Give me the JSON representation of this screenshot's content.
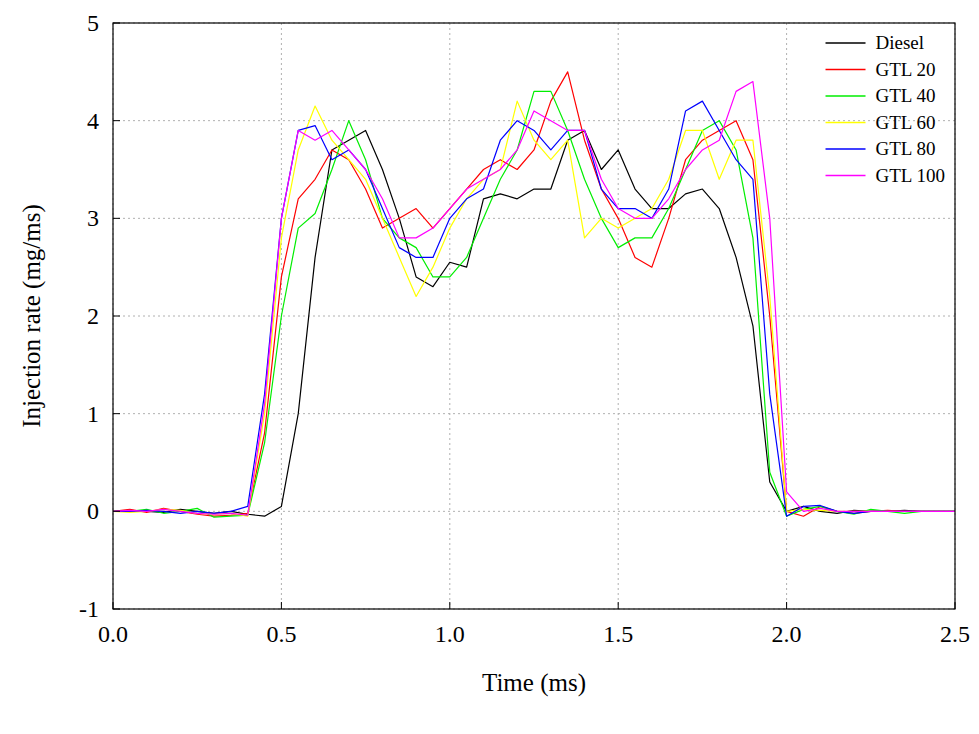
{
  "chart_data": {
    "type": "line",
    "x_label": "Time (ms)",
    "y_label": "Injection rate (mg/ms)",
    "xlim": [
      0,
      2.5
    ],
    "ylim": [
      -1,
      5
    ],
    "xticks": [
      {
        "value": 0,
        "label": "0.0"
      },
      0.5,
      {
        "value": 1,
        "label": "1.0"
      },
      1.5,
      {
        "value": 2,
        "label": "2.0"
      },
      2.5
    ],
    "yticks": [
      -1,
      0,
      1,
      2,
      3,
      4,
      5
    ],
    "grid": true,
    "legend": "upper right",
    "x": [
      0,
      0.05,
      0.1,
      0.15,
      0.2,
      0.25,
      0.3,
      0.35,
      0.4,
      0.45,
      0.5,
      0.55,
      0.6,
      0.65,
      0.7,
      0.75,
      0.8,
      0.85,
      0.9,
      0.95,
      1.0,
      1.05,
      1.1,
      1.15,
      1.2,
      1.25,
      1.3,
      1.35,
      1.4,
      1.45,
      1.5,
      1.55,
      1.6,
      1.65,
      1.7,
      1.75,
      1.8,
      1.85,
      1.9,
      1.95,
      2.0,
      2.05,
      2.1,
      2.15,
      2.2,
      2.25,
      2.3,
      2.35,
      2.4,
      2.45,
      2.5
    ],
    "series": [
      {
        "name": "Diesel",
        "color": "#000000",
        "values": [
          0,
          0.01,
          0,
          -0.01,
          0.02,
          0,
          -0.02,
          0,
          -0.03,
          -0.05,
          0.05,
          1.0,
          2.6,
          3.7,
          3.8,
          3.9,
          3.5,
          3.0,
          2.4,
          2.3,
          2.55,
          2.5,
          3.2,
          3.25,
          3.2,
          3.3,
          3.3,
          3.8,
          3.9,
          3.5,
          3.7,
          3.3,
          3.1,
          3.1,
          3.25,
          3.3,
          3.1,
          2.6,
          1.9,
          0.3,
          0.0,
          0.05,
          0.0,
          -0.02,
          0.01,
          0,
          0,
          0.01,
          0,
          0,
          0
        ]
      },
      {
        "name": "GTL 20",
        "color": "#ff0000",
        "values": [
          0,
          0.02,
          -0.01,
          0.03,
          0,
          -0.03,
          -0.05,
          -0.04,
          -0.02,
          0.8,
          2.4,
          3.2,
          3.4,
          3.7,
          3.6,
          3.3,
          2.9,
          3.0,
          3.1,
          2.9,
          3.1,
          3.3,
          3.5,
          3.6,
          3.5,
          3.7,
          4.2,
          4.5,
          3.8,
          3.3,
          3.0,
          2.6,
          2.5,
          3.0,
          3.6,
          3.8,
          3.9,
          4.0,
          3.6,
          2.0,
          0,
          -0.05,
          0.05,
          0,
          -0.02,
          0,
          0.01,
          0,
          0,
          0,
          0
        ]
      },
      {
        "name": "GTL 40",
        "color": "#00ee00",
        "values": [
          0,
          0,
          0.02,
          -0.02,
          0,
          0.03,
          -0.06,
          -0.05,
          -0.04,
          0.7,
          2.0,
          2.9,
          3.05,
          3.5,
          4.0,
          3.6,
          3.0,
          2.8,
          2.7,
          2.4,
          2.4,
          2.6,
          3.0,
          3.4,
          3.7,
          4.3,
          4.3,
          3.9,
          3.4,
          3.0,
          2.7,
          2.8,
          2.8,
          3.1,
          3.5,
          3.9,
          4.0,
          3.7,
          2.8,
          0.4,
          -0.05,
          0.02,
          0.05,
          0,
          -0.03,
          0.02,
          0,
          -0.02,
          0,
          0,
          0
        ]
      },
      {
        "name": "GTL 60",
        "color": "#ffff00",
        "values": [
          0,
          -0.01,
          0,
          0.02,
          0.01,
          -0.02,
          -0.03,
          -0.02,
          -0.05,
          1.0,
          2.8,
          3.7,
          4.15,
          3.8,
          3.6,
          3.4,
          3.0,
          2.6,
          2.2,
          2.5,
          2.9,
          3.2,
          3.4,
          3.5,
          4.2,
          3.8,
          3.6,
          3.8,
          2.8,
          3.0,
          2.9,
          3.0,
          3.1,
          3.4,
          3.9,
          3.9,
          3.4,
          3.8,
          3.8,
          2.2,
          0,
          0.02,
          0.01,
          0,
          0,
          0,
          0,
          0,
          0,
          0,
          0
        ]
      },
      {
        "name": "GTL 80",
        "color": "#0000ff",
        "values": [
          0,
          0,
          0.01,
          0,
          -0.02,
          0,
          -0.02,
          0,
          0.05,
          1.2,
          3.0,
          3.9,
          3.95,
          3.6,
          3.7,
          3.5,
          3.1,
          2.7,
          2.6,
          2.6,
          3.0,
          3.2,
          3.3,
          3.8,
          4.0,
          3.9,
          3.7,
          3.9,
          3.9,
          3.3,
          3.1,
          3.1,
          3.0,
          3.3,
          4.1,
          4.2,
          3.9,
          3.6,
          3.4,
          1.2,
          -0.05,
          0.05,
          0.06,
          0,
          -0.02,
          0,
          0,
          0,
          0,
          0,
          0
        ]
      },
      {
        "name": "GTL 100",
        "color": "#ff00ff",
        "values": [
          0,
          0.01,
          0,
          0.02,
          0,
          -0.02,
          -0.03,
          -0.02,
          -0.04,
          1.1,
          3.0,
          3.9,
          3.8,
          3.9,
          3.7,
          3.5,
          3.2,
          2.8,
          2.8,
          2.9,
          3.1,
          3.3,
          3.4,
          3.5,
          3.7,
          4.1,
          4.0,
          3.9,
          3.9,
          3.4,
          3.1,
          3.0,
          3.0,
          3.2,
          3.5,
          3.7,
          3.8,
          4.3,
          4.4,
          3.0,
          0.2,
          0,
          0.03,
          0,
          0,
          0,
          0,
          0,
          0,
          0,
          0
        ]
      }
    ]
  }
}
